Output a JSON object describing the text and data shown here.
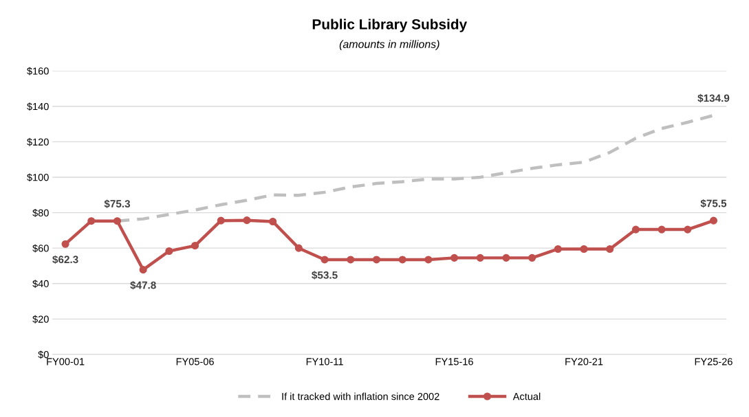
{
  "chart_data": {
    "type": "line",
    "title": "Public Library Subsidy",
    "subtitle": "(amounts in millions)",
    "categories": [
      "FY00-01",
      null,
      null,
      null,
      null,
      "FY05-06",
      null,
      null,
      null,
      null,
      "FY10-11",
      null,
      null,
      null,
      null,
      "FY15-16",
      null,
      null,
      null,
      null,
      "FY20-21",
      null,
      null,
      null,
      null,
      "FY25-26"
    ],
    "series": [
      {
        "name": "If it tracked with inflation since 2002",
        "color": "#bfbfbf",
        "line_style": "dashed",
        "marker": "none",
        "values": [
          null,
          null,
          75.3,
          76.5,
          79,
          81.5,
          84.5,
          87,
          90,
          89.8,
          91.5,
          94.5,
          96.5,
          97.5,
          99,
          99,
          100,
          102.5,
          105,
          107,
          108.5,
          114,
          122,
          127.5,
          131,
          134.9
        ],
        "value_labels": [
          null,
          null,
          "$75.3",
          null,
          null,
          null,
          null,
          null,
          null,
          null,
          null,
          null,
          null,
          null,
          null,
          null,
          null,
          null,
          null,
          null,
          null,
          null,
          null,
          null,
          null,
          "$134.9"
        ]
      },
      {
        "name": "Actual",
        "color": "#c0504d",
        "line_style": "solid",
        "marker": "circle",
        "values": [
          62.3,
          75.3,
          75.3,
          47.8,
          58.3,
          61.4,
          75.5,
          75.7,
          75,
          60,
          53.5,
          53.5,
          53.5,
          53.5,
          53.5,
          54.5,
          54.5,
          54.5,
          54.5,
          59.5,
          59.5,
          59.5,
          70.5,
          70.5,
          70.5,
          75.5
        ],
        "value_labels": [
          "$62.3",
          null,
          null,
          "$47.8",
          null,
          null,
          null,
          null,
          null,
          null,
          "$53.5",
          null,
          null,
          null,
          null,
          null,
          null,
          null,
          null,
          null,
          null,
          null,
          null,
          null,
          null,
          "$75.5"
        ]
      }
    ],
    "ylim": [
      0,
      160
    ],
    "yticks": [
      {
        "value": 0,
        "label": "$0"
      },
      {
        "value": 20,
        "label": "$20"
      },
      {
        "value": 40,
        "label": "$40"
      },
      {
        "value": 60,
        "label": "$60"
      },
      {
        "value": 80,
        "label": "$80"
      },
      {
        "value": 100,
        "label": "$100"
      },
      {
        "value": 120,
        "label": "$120"
      },
      {
        "value": 140,
        "label": "$140"
      },
      {
        "value": 160,
        "label": "$160"
      }
    ],
    "grid": "y",
    "legend": "bottom"
  }
}
